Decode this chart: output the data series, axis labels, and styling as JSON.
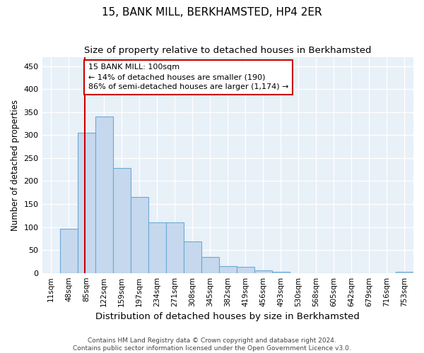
{
  "title": "15, BANK MILL, BERKHAMSTED, HP4 2ER",
  "subtitle": "Size of property relative to detached houses in Berkhamsted",
  "xlabel": "Distribution of detached houses by size in Berkhamsted",
  "ylabel": "Number of detached properties",
  "footer_line1": "Contains HM Land Registry data © Crown copyright and database right 2024.",
  "footer_line2": "Contains public sector information licensed under the Open Government Licence v3.0.",
  "bar_labels": [
    "11sqm",
    "48sqm",
    "85sqm",
    "122sqm",
    "159sqm",
    "197sqm",
    "234sqm",
    "271sqm",
    "308sqm",
    "345sqm",
    "382sqm",
    "419sqm",
    "456sqm",
    "493sqm",
    "530sqm",
    "568sqm",
    "605sqm",
    "642sqm",
    "679sqm",
    "716sqm",
    "753sqm"
  ],
  "bar_values": [
    0,
    97,
    305,
    340,
    228,
    165,
    110,
    110,
    68,
    35,
    15,
    13,
    5,
    2,
    0,
    0,
    0,
    0,
    0,
    0,
    2
  ],
  "bar_color": "#c5d8ee",
  "bar_edge_color": "#6aaad4",
  "annotation_text": "15 BANK MILL: 100sqm\n← 14% of detached houses are smaller (190)\n86% of semi-detached houses are larger (1,174) →",
  "vline_color": "#cc0000",
  "vline_position": 2.43,
  "annotation_box_color": "#ffffff",
  "annotation_box_edge": "#cc0000",
  "ylim": [
    0,
    470
  ],
  "yticks": [
    0,
    50,
    100,
    150,
    200,
    250,
    300,
    350,
    400,
    450
  ],
  "background_color": "#e8f0f8",
  "grid_color": "#ffffff",
  "title_fontsize": 11,
  "subtitle_fontsize": 9.5,
  "xlabel_fontsize": 9.5,
  "ylabel_fontsize": 8.5,
  "annotation_fontsize": 8,
  "footer_fontsize": 6.5
}
